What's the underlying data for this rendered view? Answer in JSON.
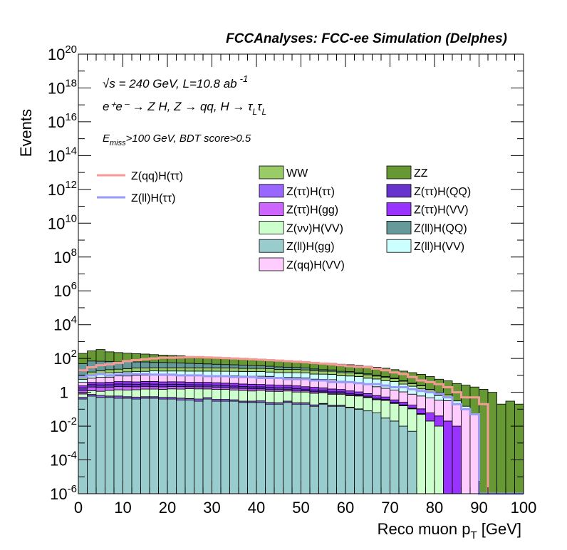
{
  "chart_data": {
    "type": "bar",
    "title": "FCCAnalyses: FCC-ee Simulation (Delphes)",
    "xlabel": "Reco muon p",
    "xlabel_sub": "T",
    "xlabel_unit": " [GeV]",
    "ylabel": "Events",
    "xlim": [
      0,
      100
    ],
    "ylim": [
      1e-06,
      1e+20
    ],
    "log_y": true,
    "stacked": true,
    "bin_width": 2,
    "x_ticks": [
      "0",
      "10",
      "20",
      "30",
      "40",
      "50",
      "60",
      "70",
      "80",
      "90",
      "100"
    ],
    "y_ticks": [
      {
        "pre": "10",
        "exp": "20"
      },
      {
        "pre": "10",
        "exp": "18"
      },
      {
        "pre": "10",
        "exp": "16"
      },
      {
        "pre": "10",
        "exp": "14"
      },
      {
        "pre": "10",
        "exp": "12"
      },
      {
        "pre": "10",
        "exp": "10"
      },
      {
        "pre": "10",
        "exp": "8"
      },
      {
        "pre": "10",
        "exp": "6"
      },
      {
        "pre": "10",
        "exp": "4"
      },
      {
        "pre": "10",
        "exp": "2"
      },
      {
        "pre": "1",
        "exp": ""
      },
      {
        "pre": "10",
        "exp": "-2"
      },
      {
        "pre": "10",
        "exp": "-4"
      },
      {
        "pre": "10",
        "exp": "-6"
      }
    ],
    "annotations": {
      "energy_prefix": "√s",
      "energy": " = 240 GeV, L=10.8 ab",
      "energy_exp": "-1",
      "process": "e⁺e⁻ → Z H, Z → qq, H → τ",
      "process_sub1": "L",
      "process_mid": "τ",
      "process_sub2": "L",
      "cut_e": "E",
      "cut_sub": "miss",
      "cut": ">100 GeV, BDT score>0.5"
    },
    "line_legend": [
      {
        "label": "Z(qq)H(ττ)",
        "color": "#f59a96"
      },
      {
        "label": "Z(ll)H(ττ)",
        "color": "#9a9af7"
      }
    ],
    "legend_col1": [
      {
        "label": "WW",
        "color": "#99cc66"
      },
      {
        "label": "Z(ττ)H(ττ)",
        "color": "#9966ff"
      },
      {
        "label": "Z(ττ)H(gg)",
        "color": "#cc66ff"
      },
      {
        "label": "Z(νν)H(VV)",
        "color": "#ccffcc"
      },
      {
        "label": "Z(ll)H(gg)",
        "color": "#99cccc"
      },
      {
        "label": "Z(qq)H(VV)",
        "color": "#ffccff"
      }
    ],
    "legend_col2": [
      {
        "label": "ZZ",
        "color": "#669933"
      },
      {
        "label": "Z(ττ)H(QQ)",
        "color": "#6633cc"
      },
      {
        "label": "Z(ττ)H(VV)",
        "color": "#9933ff"
      },
      {
        "label": "Z(ll)H(QQ)",
        "color": "#669999"
      },
      {
        "label": "Z(ll)H(VV)",
        "color": "#ccffff"
      }
    ],
    "stack_series": [
      {
        "name": "Z(ll)H(gg)",
        "color": "#99cccc",
        "values": [
          0.4,
          0.6,
          0.5,
          0.5,
          0.45,
          0.45,
          0.4,
          0.45,
          0.45,
          0.4,
          0.4,
          0.35,
          0.35,
          0.3,
          0.4,
          0.3,
          0.3,
          0.3,
          0.25,
          0.25,
          0.25,
          0.2,
          0.2,
          0.25,
          0.2,
          0.2,
          0.15,
          0.2,
          0.15,
          0.15,
          0.12,
          0.1,
          0.08,
          0.06,
          0.03,
          0.02,
          0.01,
          0.005,
          0,
          0,
          0,
          0,
          0,
          0,
          0,
          0,
          0,
          0,
          0,
          0
        ]
      },
      {
        "name": "Z(ττ)H(ττ)",
        "color": "#9966ff",
        "values": [
          0.1,
          0.15,
          0.15,
          0.1,
          0.15,
          0.1,
          0.12,
          0.1,
          0.1,
          0.1,
          0.1,
          0.1,
          0.08,
          0.1,
          0.08,
          0.08,
          0.08,
          0.06,
          0.05,
          0.05,
          0.06,
          0.05,
          0.04,
          0.05,
          0.04,
          0.04,
          0.03,
          0.02,
          0.02,
          0.02,
          0.01,
          0.005,
          0,
          0,
          0,
          0,
          0,
          0,
          0,
          0,
          0,
          0,
          0,
          0,
          0,
          0,
          0,
          0,
          0,
          0
        ]
      },
      {
        "name": "Z(νν)H(VV)",
        "color": "#ccffcc",
        "values": [
          0.3,
          0.5,
          0.5,
          0.7,
          0.8,
          0.8,
          0.9,
          1.0,
          1.0,
          1.0,
          1.1,
          1.1,
          1.2,
          1.2,
          1.1,
          1.1,
          1.1,
          1.0,
          1.0,
          0.9,
          1.0,
          0.9,
          0.9,
          0.9,
          0.8,
          0.8,
          0.7,
          0.7,
          0.6,
          0.6,
          0.5,
          0.5,
          0.4,
          0.3,
          0.3,
          0.2,
          0.15,
          0.1,
          0.05,
          0.02,
          0.01,
          0,
          0,
          0,
          0,
          0,
          0,
          0,
          0,
          0
        ]
      },
      {
        "name": "Z(ττ)H(gg)",
        "color": "#cc66ff",
        "values": [
          0.5,
          0.8,
          0.8,
          0.7,
          0.8,
          0.8,
          0.7,
          0.7,
          0.6,
          0.6,
          0.6,
          0.6,
          0.5,
          0.5,
          0.5,
          0.5,
          0.4,
          0.4,
          0.4,
          0.4,
          0.3,
          0.3,
          0.3,
          0.3,
          0.25,
          0.2,
          0.2,
          0.15,
          0.1,
          0.1,
          0.08,
          0.05,
          0.03,
          0.02,
          0.01,
          0.005,
          0,
          0,
          0,
          0,
          0,
          0,
          0,
          0,
          0,
          0,
          0,
          0,
          0,
          0
        ]
      },
      {
        "name": "Z(ττ)H(QQ)",
        "color": "#6633cc",
        "values": [
          0.5,
          0.8,
          0.8,
          0.8,
          0.9,
          0.9,
          0.8,
          0.9,
          0.9,
          0.8,
          0.8,
          0.8,
          0.7,
          0.7,
          0.7,
          0.7,
          0.6,
          0.6,
          0.5,
          0.5,
          0.5,
          0.5,
          0.4,
          0.4,
          0.4,
          0.3,
          0.3,
          0.25,
          0.2,
          0.2,
          0.15,
          0.1,
          0.08,
          0.06,
          0.04,
          0.03,
          0.02,
          0.01,
          0.005,
          0,
          0,
          0,
          0,
          0,
          0,
          0,
          0,
          0,
          0,
          0
        ]
      },
      {
        "name": "Z(ττ)H(VV)",
        "color": "#9933ff",
        "values": [
          0.6,
          1.0,
          1.0,
          1.1,
          1.2,
          1.2,
          1.2,
          1.2,
          1.3,
          1.2,
          1.2,
          1.2,
          1.1,
          1.1,
          1.1,
          1.0,
          1.0,
          1.0,
          0.9,
          0.9,
          0.8,
          0.8,
          0.8,
          0.7,
          0.7,
          0.6,
          0.6,
          0.5,
          0.5,
          0.4,
          0.35,
          0.3,
          0.25,
          0.2,
          0.15,
          0.1,
          0.08,
          0.06,
          0.05,
          0.04,
          0.03,
          0.02,
          0.01,
          0,
          0,
          0,
          0,
          0,
          0,
          0
        ]
      },
      {
        "name": "Z(qq)H(VV)",
        "color": "#ffccff",
        "values": [
          1.5,
          3,
          4,
          4,
          5,
          5,
          6,
          6,
          6,
          6,
          6,
          6,
          6,
          6,
          6,
          6,
          6,
          6,
          6,
          6,
          6,
          6,
          5,
          5,
          5,
          5,
          4,
          4,
          4,
          3,
          3,
          2.5,
          2,
          1.5,
          1.2,
          1,
          0.8,
          0.6,
          0.5,
          0.4,
          0.3,
          0.3,
          0.2,
          0.1,
          0.05,
          0,
          0,
          0,
          0,
          0
        ]
      },
      {
        "name": "Z(ll)H(VV)",
        "color": "#ccffff",
        "values": [
          2,
          4,
          5,
          6,
          6,
          7,
          7,
          7,
          8,
          8,
          8,
          8,
          8,
          8,
          8,
          8,
          8,
          8,
          8,
          8,
          8,
          7,
          7,
          7,
          7,
          7,
          6,
          6,
          6,
          5,
          5,
          5,
          4,
          4,
          3,
          3,
          2,
          1.5,
          1,
          0.5,
          0.3,
          0.2,
          0.1,
          0.05,
          0,
          0,
          0,
          0,
          0,
          0
        ]
      },
      {
        "name": "WW",
        "color": "#99cc66",
        "values": [
          3,
          5,
          6,
          8,
          8,
          9,
          10,
          10,
          10,
          10,
          10,
          10,
          10,
          10,
          10,
          10,
          10,
          10,
          9,
          9,
          9,
          9,
          8,
          8,
          8,
          7,
          7,
          6,
          6,
          5,
          5,
          4,
          4,
          3,
          3,
          2,
          1.5,
          1,
          0.8,
          0.5,
          0.3,
          0.2,
          0,
          0,
          0,
          0,
          0,
          0,
          0,
          0
        ]
      },
      {
        "name": "Z(ll)H(QQ)",
        "color": "#669999",
        "values": [
          40,
          55,
          50,
          45,
          40,
          40,
          35,
          35,
          30,
          30,
          28,
          26,
          24,
          22,
          20,
          18,
          16,
          15,
          14,
          12,
          11,
          10,
          9,
          8,
          7,
          6,
          5,
          4,
          3.5,
          3,
          2.5,
          2,
          1.5,
          1,
          0.8,
          0.5,
          0.3,
          0.2,
          0.1,
          0.05,
          0,
          0,
          0,
          0,
          0,
          0,
          0,
          0,
          0,
          0
        ]
      },
      {
        "name": "ZZ",
        "color": "#669933",
        "values": [
          150,
          210,
          270,
          180,
          160,
          140,
          130,
          120,
          110,
          100,
          95,
          90,
          80,
          75,
          70,
          65,
          60,
          55,
          50,
          48,
          46,
          44,
          42,
          40,
          38,
          36,
          34,
          32,
          30,
          28,
          26,
          24,
          22,
          20,
          18,
          15,
          13,
          11,
          9,
          7,
          5,
          4,
          3,
          2.5,
          2,
          1.5,
          1,
          0.2,
          0.3,
          0.2
        ]
      }
    ],
    "line_series": [
      {
        "name": "Z(qq)H(ττ)",
        "color": "#f59a96",
        "values": [
          20,
          30,
          40,
          45,
          55,
          70,
          80,
          90,
          100,
          110,
          110,
          115,
          120,
          120,
          115,
          110,
          105,
          100,
          95,
          90,
          85,
          80,
          75,
          70,
          65,
          60,
          55,
          50,
          45,
          40,
          35,
          32,
          30,
          25,
          20,
          15,
          12,
          8,
          5,
          4,
          3,
          2,
          1,
          0.5,
          0.5,
          0.2,
          0,
          0,
          0,
          0
        ]
      },
      {
        "name": "Z(ll)H(ττ)",
        "color": "#9a9af7",
        "values": [
          8,
          10,
          12,
          10,
          11,
          12,
          12,
          12,
          11,
          11,
          11,
          10,
          10,
          10,
          9,
          9,
          9,
          8,
          8,
          8,
          7,
          7,
          7,
          6,
          6,
          6,
          5,
          5,
          4,
          4,
          4,
          3.5,
          3,
          3,
          2.5,
          2,
          2,
          1.5,
          1.2,
          1,
          0.8,
          0.5,
          0.2,
          0.1,
          0.05,
          0,
          0,
          0,
          0,
          0
        ]
      }
    ]
  }
}
